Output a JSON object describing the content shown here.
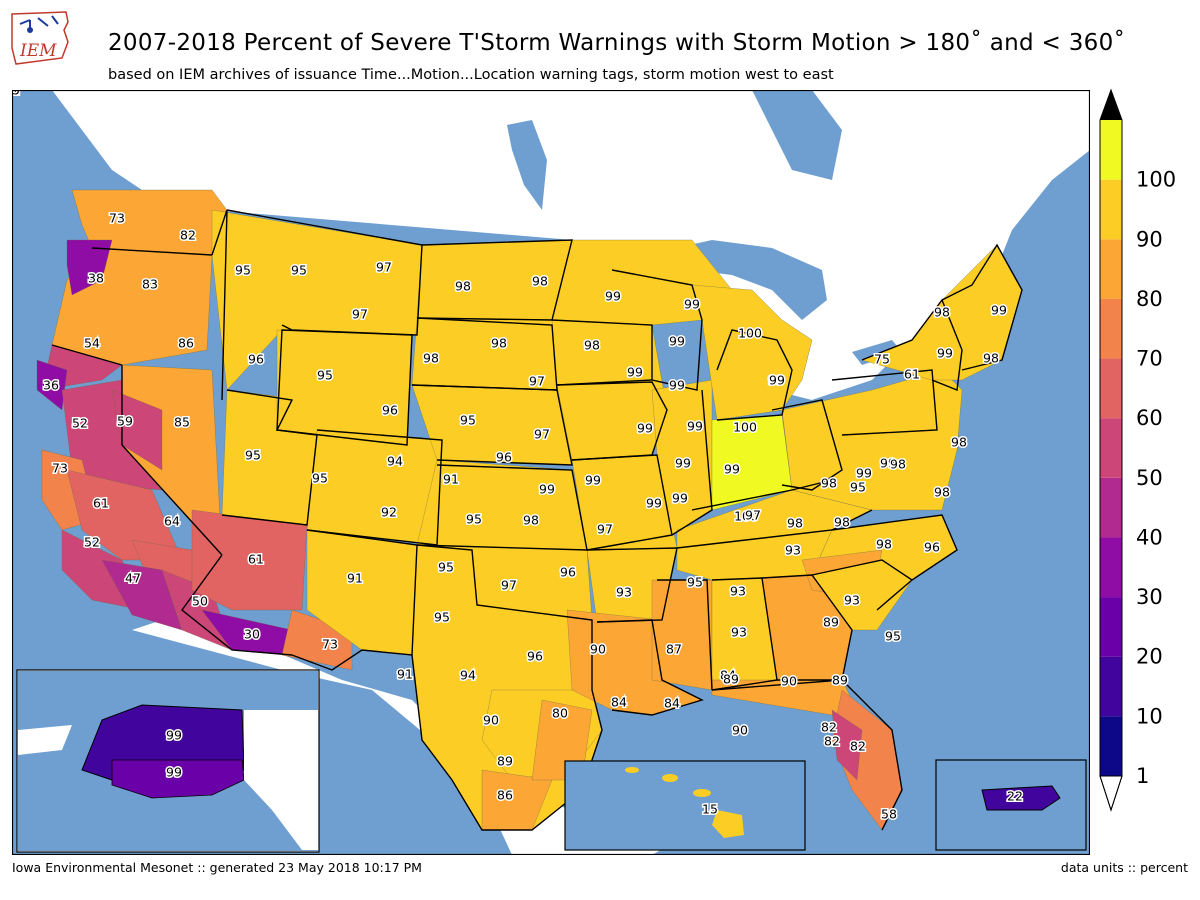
{
  "header": {
    "logo_text": "IEM",
    "title": "2007-2018 Percent of Severe T'Storm Warnings with Storm Motion > 180$^\\circ$ and < 360$^\\circ$",
    "title_display": "2007-2018 Percent of Severe T'Storm Warnings with Storm Motion > 180˚ and < 360˚",
    "subtitle": "based on IEM archives of issuance Time...Motion...Location warning tags, storm motion west to east"
  },
  "footer": {
    "left": "Iowa Environmental Mesonet :: generated 23 May 2018 10:17 PM",
    "right": "data units :: percent"
  },
  "colors": {
    "ocean": "#6f9fd0",
    "land_outside": "#ffffff",
    "bins": [
      "#0d0887",
      "#41049d",
      "#6a00a8",
      "#8f0da4",
      "#b12a90",
      "#cc4778",
      "#e16462",
      "#f2844b",
      "#fca636",
      "#fcce25",
      "#f0f921"
    ],
    "over": "#000000",
    "under": "#ffffff"
  },
  "colorbar": {
    "ticks": [
      "1",
      "10",
      "20",
      "30",
      "40",
      "50",
      "60",
      "70",
      "80",
      "90",
      "100"
    ],
    "extend": "both"
  },
  "chart_data": {
    "type": "choropleth",
    "units": "percent",
    "levels": [
      1,
      10,
      20,
      30,
      40,
      50,
      60,
      70,
      80,
      90,
      100
    ],
    "regions": [
      {
        "label": "73",
        "value": 73
      },
      {
        "label": "82",
        "value": 82
      },
      {
        "label": "38",
        "value": 38
      },
      {
        "label": "83",
        "value": 83
      },
      {
        "label": "54",
        "value": 54
      },
      {
        "label": "86",
        "value": 86
      },
      {
        "label": "36",
        "value": 36
      },
      {
        "label": "52",
        "value": 52
      },
      {
        "label": "59",
        "value": 59
      },
      {
        "label": "85",
        "value": 85
      },
      {
        "label": "73",
        "value": 73
      },
      {
        "label": "61",
        "value": 61
      },
      {
        "label": "64",
        "value": 64
      },
      {
        "label": "52",
        "value": 52
      },
      {
        "label": "47",
        "value": 47
      },
      {
        "label": "50",
        "value": 50
      },
      {
        "label": "30",
        "value": 30
      },
      {
        "label": "61",
        "value": 61
      },
      {
        "label": "73",
        "value": 73
      },
      {
        "label": "95",
        "value": 95
      },
      {
        "label": "95",
        "value": 95
      },
      {
        "label": "97",
        "value": 97
      },
      {
        "label": "97",
        "value": 97
      },
      {
        "label": "96",
        "value": 96
      },
      {
        "label": "95",
        "value": 95
      },
      {
        "label": "96",
        "value": 96
      },
      {
        "label": "95",
        "value": 95
      },
      {
        "label": "95",
        "value": 95
      },
      {
        "label": "94",
        "value": 94
      },
      {
        "label": "91",
        "value": 91
      },
      {
        "label": "92",
        "value": 92
      },
      {
        "label": "91",
        "value": 91
      },
      {
        "label": "98",
        "value": 98
      },
      {
        "label": "98",
        "value": 98
      },
      {
        "label": "98",
        "value": 98
      },
      {
        "label": "98",
        "value": 98
      },
      {
        "label": "97",
        "value": 97
      },
      {
        "label": "95",
        "value": 95
      },
      {
        "label": "96",
        "value": 96
      },
      {
        "label": "97",
        "value": 97
      },
      {
        "label": "99",
        "value": 99
      },
      {
        "label": "95",
        "value": 95
      },
      {
        "label": "98",
        "value": 98
      },
      {
        "label": "95",
        "value": 95
      },
      {
        "label": "97",
        "value": 97
      },
      {
        "label": "96",
        "value": 96
      },
      {
        "label": "95",
        "value": 95
      },
      {
        "label": "94",
        "value": 94
      },
      {
        "label": "91",
        "value": 91
      },
      {
        "label": "96",
        "value": 96
      },
      {
        "label": "90",
        "value": 90
      },
      {
        "label": "89",
        "value": 89
      },
      {
        "label": "86",
        "value": 86
      },
      {
        "label": "80",
        "value": 80
      },
      {
        "label": "99",
        "value": 99
      },
      {
        "label": "99",
        "value": 99
      },
      {
        "label": "98",
        "value": 98
      },
      {
        "label": "99",
        "value": 99
      },
      {
        "label": "99",
        "value": 99
      },
      {
        "label": "99",
        "value": 99
      },
      {
        "label": "99",
        "value": 99
      },
      {
        "label": "99",
        "value": 99
      },
      {
        "label": "99",
        "value": 99
      },
      {
        "label": "97",
        "value": 97
      },
      {
        "label": "93",
        "value": 93
      },
      {
        "label": "90",
        "value": 90
      },
      {
        "label": "84",
        "value": 84
      },
      {
        "label": "87",
        "value": 87
      },
      {
        "label": "84",
        "value": 84
      },
      {
        "label": "99",
        "value": 99
      },
      {
        "label": "100",
        "value": 100
      },
      {
        "label": "99",
        "value": 99
      },
      {
        "label": "100",
        "value": 100
      },
      {
        "label": "99",
        "value": 99
      },
      {
        "label": "100",
        "value": 100
      },
      {
        "label": "99",
        "value": 99
      },
      {
        "label": "99",
        "value": 99
      },
      {
        "label": "95",
        "value": 95
      },
      {
        "label": "93",
        "value": 93
      },
      {
        "label": "93",
        "value": 93
      },
      {
        "label": "93",
        "value": 93
      },
      {
        "label": "90",
        "value": 90
      },
      {
        "label": "84",
        "value": 84
      },
      {
        "label": "99",
        "value": 99
      },
      {
        "label": "98",
        "value": 98
      },
      {
        "label": "97",
        "value": 97
      },
      {
        "label": "98",
        "value": 98
      },
      {
        "label": "98",
        "value": 98
      },
      {
        "label": "95",
        "value": 95
      },
      {
        "label": "99",
        "value": 99
      },
      {
        "label": "99",
        "value": 99
      },
      {
        "label": "98",
        "value": 98
      },
      {
        "label": "98",
        "value": 98
      },
      {
        "label": "98",
        "value": 98
      },
      {
        "label": "98",
        "value": 98
      },
      {
        "label": "96",
        "value": 96
      },
      {
        "label": "95",
        "value": 95
      },
      {
        "label": "93",
        "value": 93
      },
      {
        "label": "89",
        "value": 89
      },
      {
        "label": "90",
        "value": 90
      },
      {
        "label": "89",
        "value": 89
      },
      {
        "label": "89",
        "value": 89
      },
      {
        "label": "82",
        "value": 82
      },
      {
        "label": "82",
        "value": 82
      },
      {
        "label": "82",
        "value": 82
      },
      {
        "label": "58",
        "value": 58
      },
      {
        "label": "75",
        "value": 75
      },
      {
        "label": "61",
        "value": 61
      },
      {
        "label": "99",
        "value": 99
      },
      {
        "label": "99",
        "value": 99
      },
      {
        "label": "98",
        "value": 98
      },
      {
        "label": "98",
        "value": 98
      },
      {
        "label": "99",
        "value": 99
      },
      {
        "label": "99",
        "value": 99
      },
      {
        "label": "15",
        "value": 15,
        "inset": "alaska"
      },
      {
        "label": "22",
        "value": 22,
        "inset": "alaska"
      },
      {
        "label": "92",
        "value": 92,
        "inset": "hawaii"
      },
      {
        "label": "15",
        "value": 15,
        "inset": "puerto-rico"
      }
    ]
  }
}
